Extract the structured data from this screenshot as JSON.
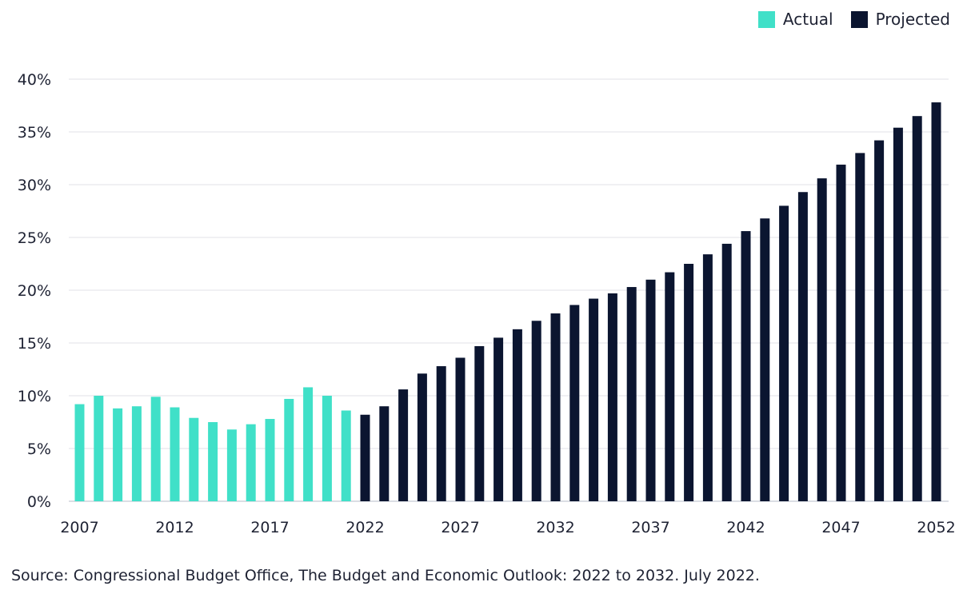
{
  "chart_data": {
    "type": "bar",
    "title": "",
    "xlabel": "",
    "ylabel": "",
    "ylim": [
      0,
      40
    ],
    "yticks": [
      "0%",
      "5%",
      "10%",
      "15%",
      "20%",
      "25%",
      "30%",
      "35%",
      "40%"
    ],
    "xtick_labels": [
      "2007",
      "2012",
      "2017",
      "2022",
      "2027",
      "2032",
      "2037",
      "2042",
      "2047",
      "2052"
    ],
    "grid": true,
    "legend_position": "top-right",
    "categories": [
      "2007",
      "2008",
      "2009",
      "2010",
      "2011",
      "2012",
      "2013",
      "2014",
      "2015",
      "2016",
      "2017",
      "2018",
      "2019",
      "2020",
      "2021",
      "2022",
      "2023",
      "2024",
      "2025",
      "2026",
      "2027",
      "2028",
      "2029",
      "2030",
      "2031",
      "2032",
      "2033",
      "2034",
      "2035",
      "2036",
      "2037",
      "2038",
      "2039",
      "2040",
      "2041",
      "2042",
      "2043",
      "2044",
      "2045",
      "2046",
      "2047",
      "2048",
      "2049",
      "2050",
      "2051",
      "2052"
    ],
    "series": [
      {
        "name": "Actual",
        "color": "#40e0c8",
        "values": [
          9.2,
          10.0,
          8.8,
          9.0,
          9.9,
          8.9,
          7.9,
          7.5,
          6.8,
          7.3,
          7.8,
          9.7,
          10.8,
          10.0,
          8.6,
          null,
          null,
          null,
          null,
          null,
          null,
          null,
          null,
          null,
          null,
          null,
          null,
          null,
          null,
          null,
          null,
          null,
          null,
          null,
          null,
          null,
          null,
          null,
          null,
          null,
          null,
          null,
          null,
          null,
          null,
          null
        ]
      },
      {
        "name": "Projected",
        "color": "#0b1530",
        "values": [
          null,
          null,
          null,
          null,
          null,
          null,
          null,
          null,
          null,
          null,
          null,
          null,
          null,
          null,
          null,
          8.2,
          9.0,
          10.6,
          12.1,
          12.8,
          13.6,
          14.7,
          15.5,
          16.3,
          17.1,
          17.8,
          18.6,
          19.2,
          19.7,
          20.3,
          21.0,
          21.7,
          22.5,
          23.4,
          24.4,
          25.6,
          26.8,
          28.0,
          29.3,
          30.6,
          31.9,
          33.0,
          34.2,
          35.4,
          36.5,
          37.8
        ]
      }
    ]
  },
  "source_text": "Source: Congressional Budget Office, The Budget and Economic Outlook: 2022 to 2032. July 2022."
}
